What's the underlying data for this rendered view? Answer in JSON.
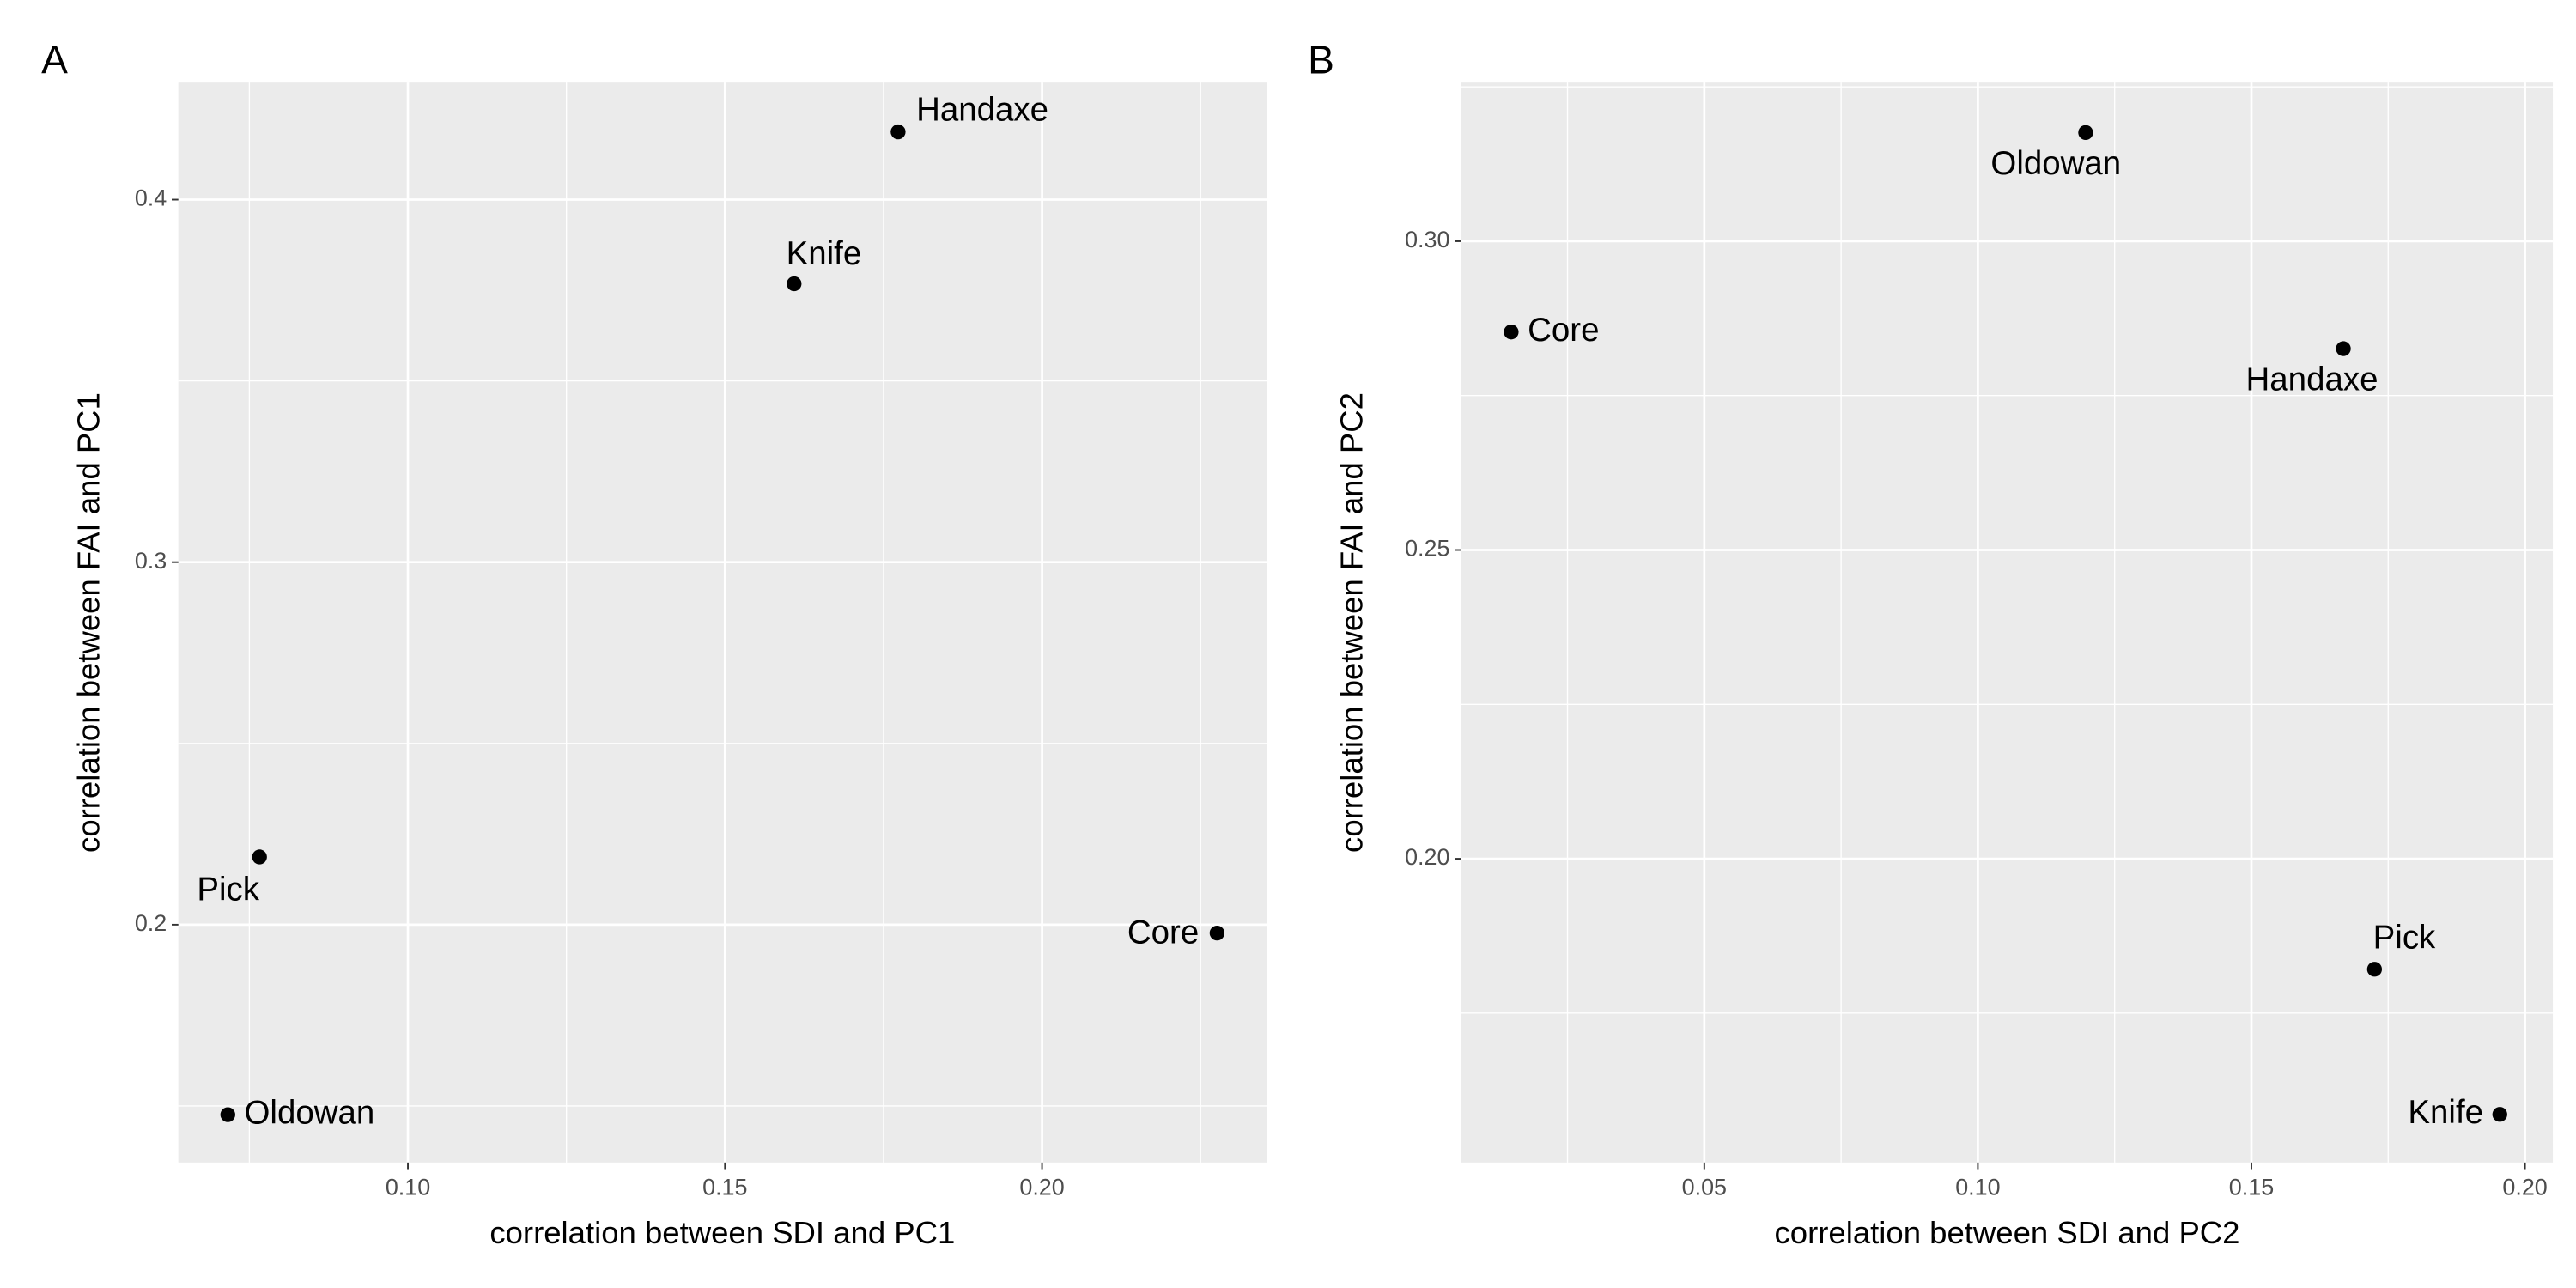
{
  "chart_data": [
    {
      "type": "scatter",
      "tag": "A",
      "x_label": "correlation between SDI and PC1",
      "y_label": "correlation between FAI and PC1",
      "labels": [
        "Handaxe",
        "Knife",
        "Pick",
        "Core",
        "Oldowan"
      ],
      "x": [
        0.1773,
        0.1609,
        0.0766,
        0.2276,
        0.0716
      ],
      "values": [
        0.4187,
        0.3768,
        0.2187,
        0.1977,
        0.1476
      ],
      "color": "#000000",
      "xlim": [
        0.0638,
        0.2354
      ],
      "xticks": [
        {
          "value": 0.1,
          "label": "0.10"
        },
        0.15,
        {
          "value": 0.2,
          "label": "0.20"
        }
      ],
      "ylim": [
        0.1344,
        0.4323
      ],
      "yticks": [
        0.2,
        0.3,
        0.4
      ],
      "grid": true
    },
    {
      "type": "scatter",
      "tag": "B",
      "x_label": "correlation between SDI and PC2",
      "y_label": "correlation between FAI and PC2",
      "labels": [
        "Oldowan",
        "Core",
        "Handaxe",
        "Pick",
        "Knife"
      ],
      "x": [
        0.1197,
        0.0147,
        0.1668,
        0.1725,
        0.1954
      ],
      "values": [
        0.3176,
        0.2853,
        0.2826,
        0.1821,
        0.1586
      ],
      "color": "#000000",
      "xlim": [
        0.0056,
        0.2051
      ],
      "xticks": [
        0.05,
        {
          "value": 0.1,
          "label": "0.10"
        },
        0.15,
        {
          "value": 0.2,
          "label": "0.20"
        }
      ],
      "ylim": [
        0.1508,
        0.3257
      ],
      "yticks": [
        {
          "value": 0.2,
          "label": "0.20"
        },
        0.25,
        {
          "value": 0.3,
          "label": "0.30"
        }
      ],
      "grid": true
    }
  ]
}
